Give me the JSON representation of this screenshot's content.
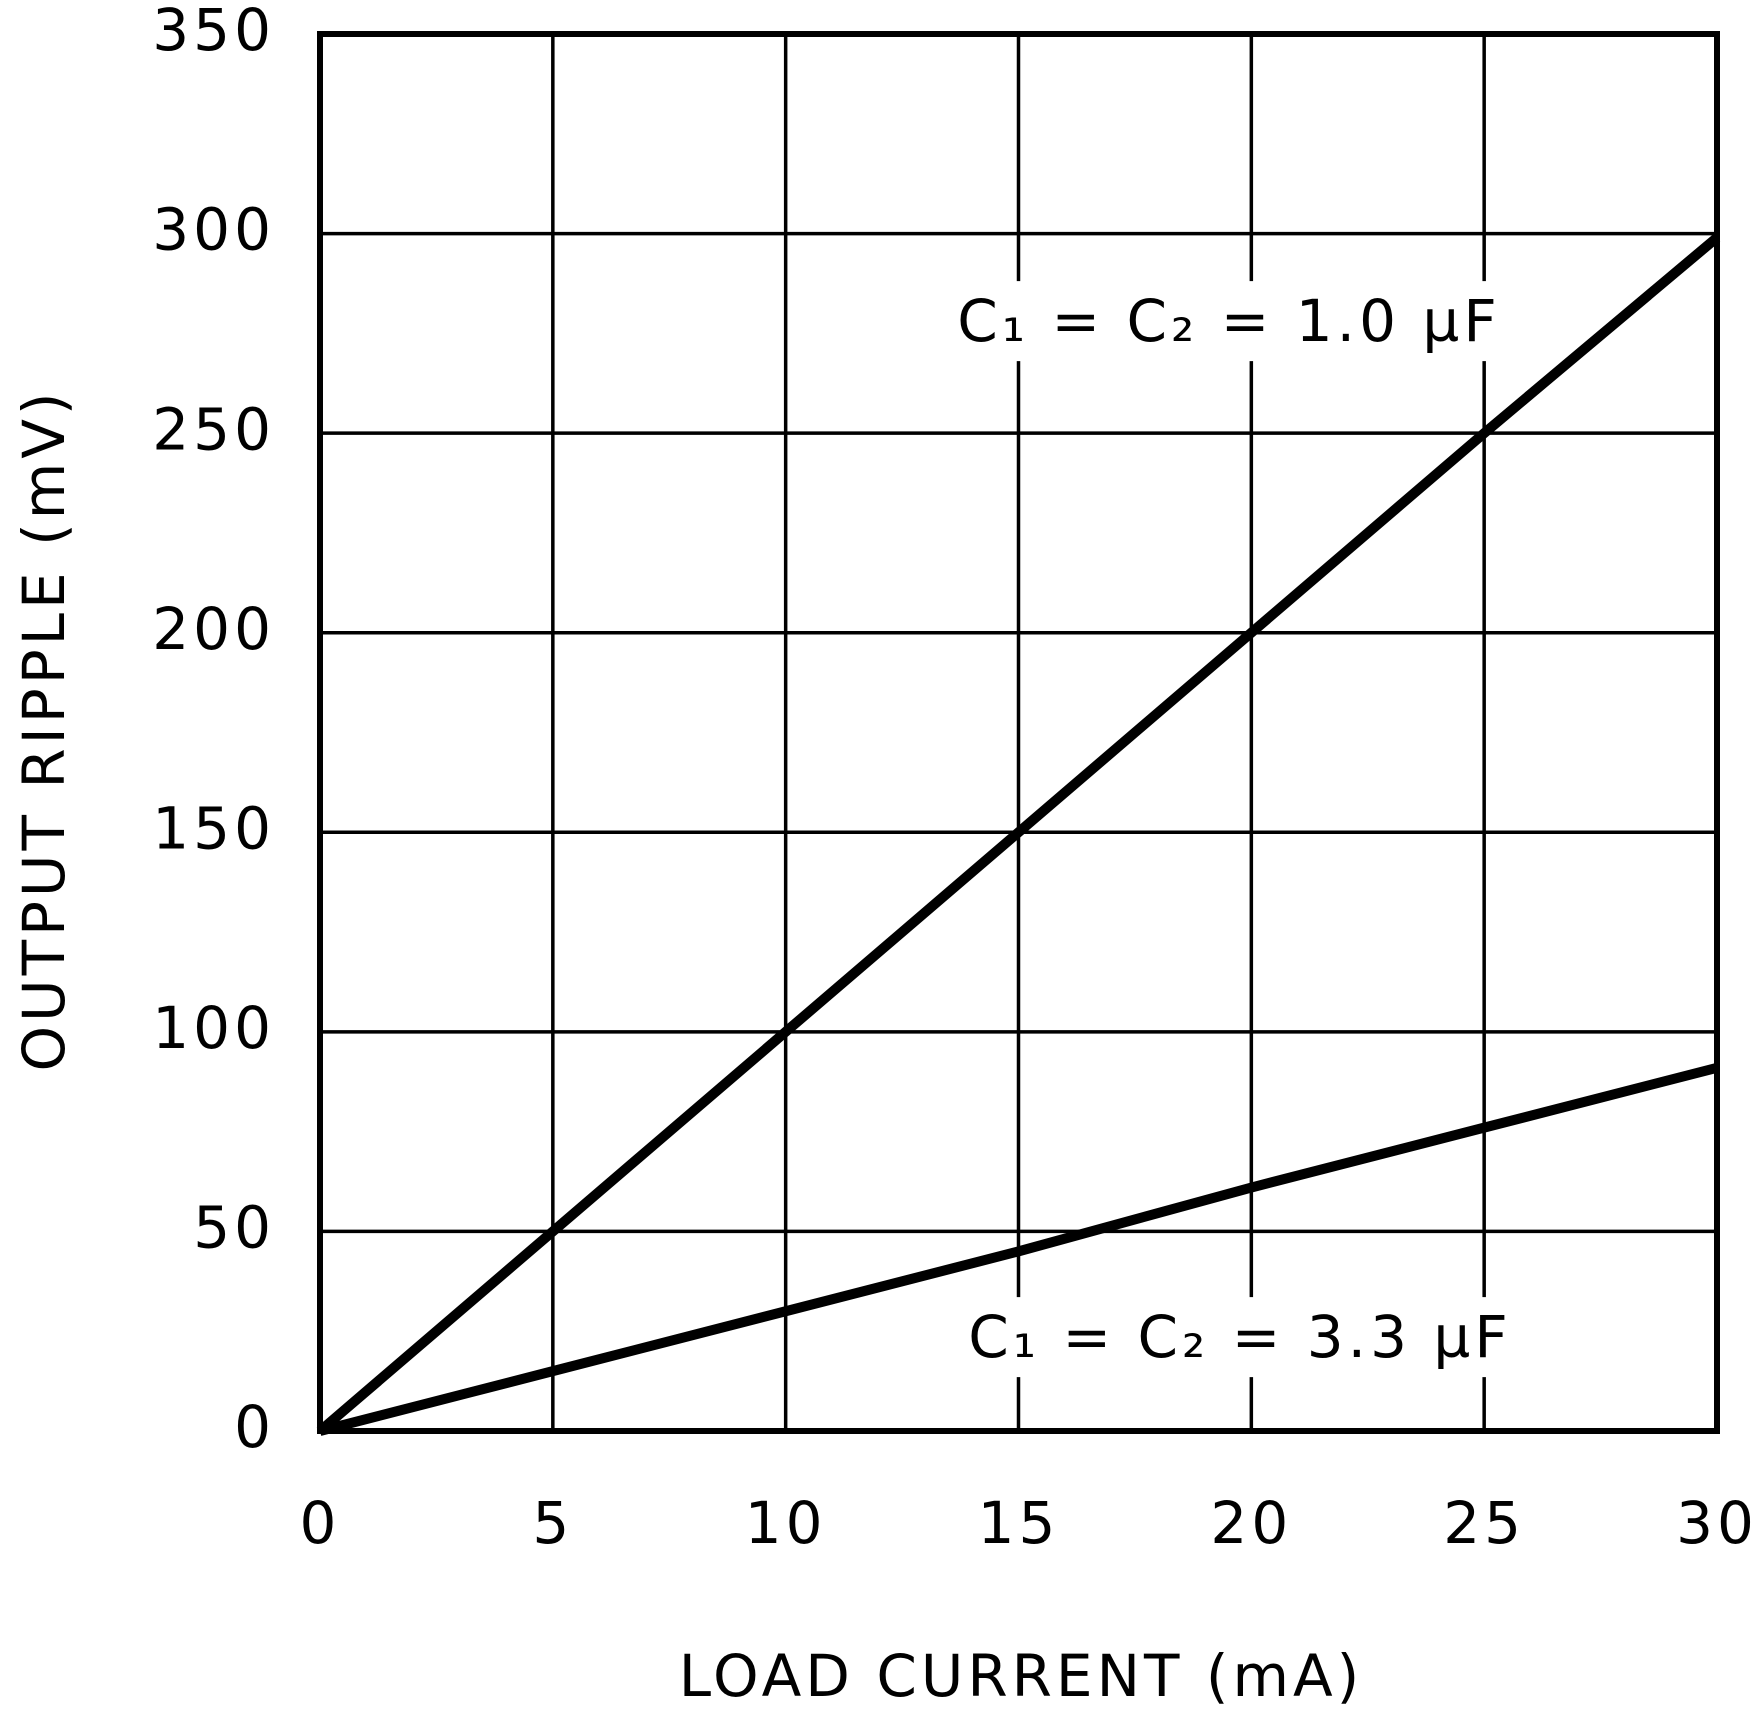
{
  "chart_data": {
    "type": "line",
    "x_label": "LOAD CURRENT (mA)",
    "y_label": "OUTPUT RIPPLE (mV)",
    "x": [
      0,
      5,
      10,
      15,
      20,
      25,
      30
    ],
    "series": [
      {
        "name": "C₁ = C₂ = 1.0 µF",
        "color": "#000000",
        "values": [
          0,
          50,
          100,
          150,
          200,
          250,
          299
        ]
      },
      {
        "name": "C₁ = C₂ = 3.3 µF",
        "color": "#000000",
        "values": [
          0,
          15,
          30,
          45,
          61,
          76,
          91
        ]
      }
    ],
    "xlim": [
      0,
      30
    ],
    "xticks": [
      0,
      5,
      10,
      15,
      20,
      25,
      30
    ],
    "ylim": [
      0,
      350
    ],
    "yticks": [
      0,
      50,
      100,
      150,
      200,
      250,
      300,
      350
    ],
    "grid": true
  }
}
